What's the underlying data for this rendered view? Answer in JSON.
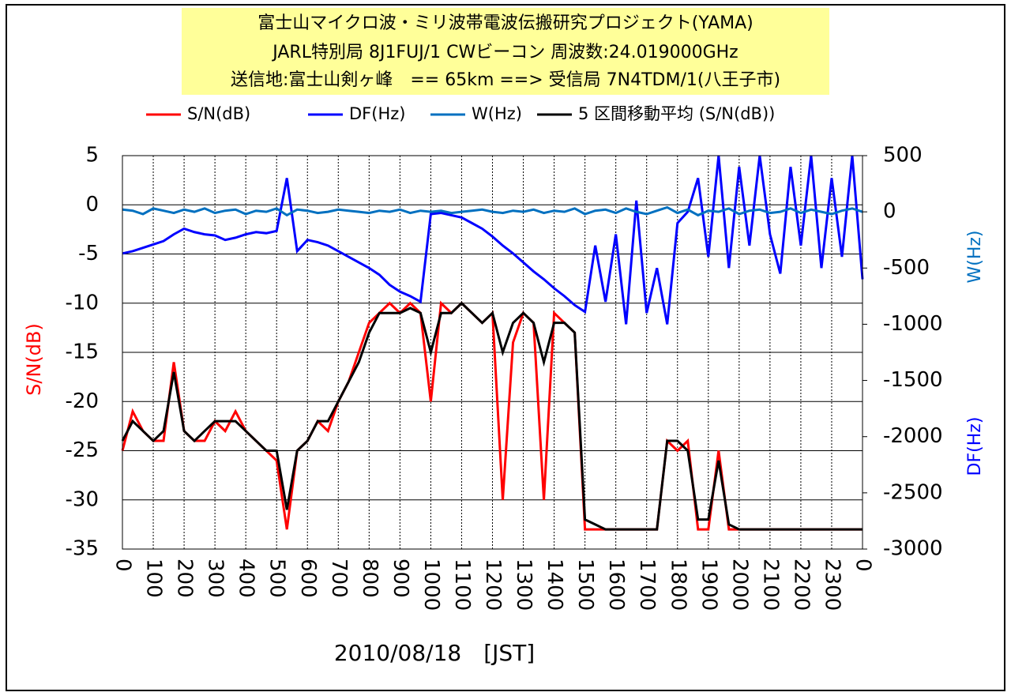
{
  "chart_data": {
    "type": "line",
    "title": [
      "富士山マイクロ波・ミリ波帯電波伝搬研究プロジェクト(YAMA)",
      "JARL特別局 8J1FUJ/1 CWビーコン 周波数:24.019000GHz",
      "送信地:富士山剣ヶ峰　== 65km ==> 受信局 7N4TDM/1(八王子市)"
    ],
    "xlabel": "2010/08/18　[JST]",
    "ylabel": "S/N(dB)",
    "y2labels": [
      "W(Hz)",
      "DF(Hz)"
    ],
    "x": [
      0,
      20,
      40,
      60,
      80,
      100,
      120,
      140,
      160,
      180,
      200,
      220,
      240,
      260,
      280,
      300,
      320,
      340,
      360,
      380,
      400,
      420,
      440,
      460,
      480,
      500,
      520,
      540,
      560,
      580,
      600,
      620,
      640,
      660,
      680,
      700,
      720,
      740,
      760,
      780,
      800,
      820,
      840,
      860,
      880,
      900,
      920,
      940,
      960,
      980,
      1000,
      1020,
      1040,
      1060,
      1080,
      1100,
      1120,
      1140,
      1160,
      1180,
      1200,
      1220,
      1240,
      1260,
      1280,
      1300,
      1320,
      1340,
      1360,
      1380,
      1400,
      1420,
      1440
    ],
    "xlim": [
      0,
      1440
    ],
    "xticks": [
      0,
      {
        "value": 60,
        "label": "100"
      },
      {
        "value": 120,
        "label": "200"
      },
      {
        "value": 180,
        "label": "300"
      },
      {
        "value": 240,
        "label": "400"
      },
      {
        "value": 300,
        "label": "500"
      },
      {
        "value": 360,
        "label": "600"
      },
      {
        "value": 420,
        "label": "700"
      },
      {
        "value": 480,
        "label": "800"
      },
      {
        "value": 540,
        "label": "900"
      },
      {
        "value": 600,
        "label": "1000"
      },
      {
        "value": 660,
        "label": "1100"
      },
      {
        "value": 720,
        "label": "1200"
      },
      {
        "value": 780,
        "label": "1300"
      },
      {
        "value": 840,
        "label": "1400"
      },
      {
        "value": 900,
        "label": "1500"
      },
      {
        "value": 960,
        "label": "1600"
      },
      {
        "value": 1020,
        "label": "1700"
      },
      {
        "value": 1080,
        "label": "1800"
      },
      {
        "value": 1140,
        "label": "1900"
      },
      {
        "value": 1200,
        "label": "2000"
      },
      {
        "value": 1260,
        "label": "2100"
      },
      {
        "value": 1320,
        "label": "2200"
      },
      {
        "value": 1380,
        "label": "2300"
      },
      {
        "value": 1440,
        "label": "0"
      }
    ],
    "ylim": [
      -35,
      5
    ],
    "yticks": [
      -35,
      -30,
      -25,
      -20,
      -15,
      -10,
      -5,
      0,
      5
    ],
    "y2lim": [
      -3000,
      500
    ],
    "y2ticks": [
      -3000,
      -2500,
      -2000,
      -1500,
      -1000,
      -500,
      0,
      500
    ],
    "grid": true,
    "series": [
      {
        "name": "S/N(dB)",
        "color": "#ff0000",
        "values": [
          -25,
          -21,
          -23,
          -24,
          -24,
          -16,
          -23,
          -24,
          -24,
          -22,
          -23,
          -21,
          -23,
          -24,
          -25,
          -26,
          -33,
          -25,
          -24,
          -22,
          -23,
          -20,
          -18,
          -15,
          -12,
          -11,
          -10,
          -11,
          -10,
          -11,
          -20,
          -10,
          -11,
          -10,
          -11,
          -12,
          -11,
          -30,
          -14,
          -11,
          -12,
          -30,
          -11,
          -12,
          -13,
          -33,
          -33,
          -33,
          -33,
          -33,
          -33,
          -33,
          -33,
          -24,
          -25,
          -24,
          -33,
          -33,
          -25,
          -33,
          -33,
          -33,
          -33,
          -33,
          -33,
          -33,
          -33,
          -33,
          -33,
          -33,
          -33,
          -33,
          -33
        ]
      },
      {
        "name": "DF(Hz)",
        "color": "#0000ff",
        "axis": "y2",
        "values": [
          -370,
          -350,
          -320,
          -290,
          -260,
          -200,
          -150,
          -180,
          -200,
          -210,
          -250,
          -230,
          -200,
          -180,
          -190,
          -170,
          300,
          -350,
          -250,
          -270,
          -300,
          -350,
          -400,
          -450,
          -500,
          -560,
          -650,
          -710,
          -750,
          -800,
          -20,
          -10,
          -30,
          -50,
          -100,
          -150,
          -220,
          -300,
          -370,
          -450,
          -530,
          -600,
          -680,
          -750,
          -830,
          -890,
          -300,
          -800,
          -200,
          -1000,
          100,
          -900,
          -500,
          -1000,
          -100,
          0,
          300,
          -400,
          500,
          -500,
          400,
          -300,
          500,
          -200,
          -550,
          400,
          -300,
          500,
          -500,
          300,
          -400,
          500,
          -600
        ]
      },
      {
        "name": "W(Hz)",
        "color": "#0070c0",
        "axis": "y2",
        "values": [
          20,
          10,
          -20,
          30,
          10,
          -10,
          20,
          0,
          30,
          -10,
          10,
          20,
          -20,
          10,
          0,
          30,
          -30,
          20,
          10,
          -10,
          0,
          20,
          10,
          0,
          -10,
          10,
          0,
          20,
          -10,
          10,
          0,
          10,
          -10,
          0,
          10,
          20,
          0,
          -10,
          10,
          0,
          20,
          -10,
          10,
          0,
          30,
          -20,
          10,
          20,
          -10,
          30,
          0,
          -20,
          10,
          40,
          -10,
          20,
          -30,
          10,
          0,
          30,
          -20,
          10,
          20,
          -10,
          0,
          30,
          -10,
          20,
          0,
          -20,
          10,
          30,
          0
        ]
      },
      {
        "name": "5 区間移動平均 (S/N(dB))",
        "color": "#000000",
        "values": [
          -24,
          -22,
          -23,
          -24,
          -23,
          -17,
          -23,
          -24,
          -23,
          -22,
          -22,
          -22,
          -23,
          -24,
          -25,
          -25,
          -31,
          -25,
          -24,
          -22,
          -22,
          -20,
          -18,
          -16,
          -13,
          -11,
          -11,
          -11,
          -10.5,
          -11,
          -15,
          -11,
          -11,
          -10,
          -11,
          -12,
          -11,
          -15,
          -12,
          -11,
          -12,
          -16,
          -12,
          -12,
          -13,
          -32,
          -32.5,
          -33,
          -33,
          -33,
          -33,
          -33,
          -33,
          -24,
          -24,
          -25,
          -32,
          -32,
          -26,
          -32.5,
          -33,
          -33,
          -33,
          -33,
          -33,
          -33,
          -33,
          -33,
          -33,
          -33,
          -33,
          -33,
          -33
        ]
      }
    ]
  }
}
